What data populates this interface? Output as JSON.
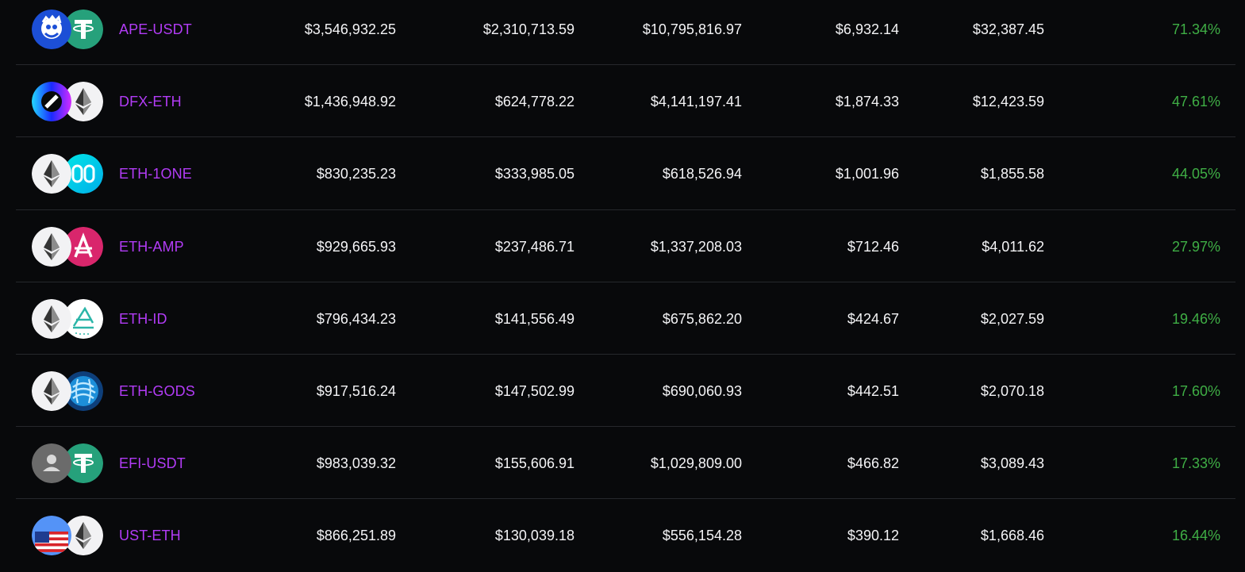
{
  "rows": [
    {
      "pair": "APE-USDT",
      "tvl": "$3,546,932.25",
      "volume_24h": "$2,310,713.59",
      "volume_7d": "$10,795,816.97",
      "fees_24h": "$6,932.14",
      "fees_7d": "$32,387.45",
      "apr": "71.34%",
      "icon1": "ape-icon",
      "icon2": "tether-icon"
    },
    {
      "pair": "DFX-ETH",
      "tvl": "$1,436,948.92",
      "volume_24h": "$624,778.22",
      "volume_7d": "$4,141,197.41",
      "fees_24h": "$1,874.33",
      "fees_7d": "$12,423.59",
      "apr": "47.61%",
      "icon1": "dfx-icon",
      "icon2": "ethereum-icon"
    },
    {
      "pair": "ETH-1ONE",
      "tvl": "$830,235.23",
      "volume_24h": "$333,985.05",
      "volume_7d": "$618,526.94",
      "fees_24h": "$1,001.96",
      "fees_7d": "$1,855.58",
      "apr": "44.05%",
      "icon1": "ethereum-icon",
      "icon2": "harmony-icon"
    },
    {
      "pair": "ETH-AMP",
      "tvl": "$929,665.93",
      "volume_24h": "$237,486.71",
      "volume_7d": "$1,337,208.03",
      "fees_24h": "$712.46",
      "fees_7d": "$4,011.62",
      "apr": "27.97%",
      "icon1": "ethereum-icon",
      "icon2": "amp-icon"
    },
    {
      "pair": "ETH-ID",
      "tvl": "$796,434.23",
      "volume_24h": "$141,556.49",
      "volume_7d": "$675,862.20",
      "fees_24h": "$424.67",
      "fees_7d": "$2,027.59",
      "apr": "19.46%",
      "icon1": "ethereum-icon",
      "icon2": "everest-icon"
    },
    {
      "pair": "ETH-GODS",
      "tvl": "$917,516.24",
      "volume_24h": "$147,502.99",
      "volume_7d": "$690,060.93",
      "fees_24h": "$442.51",
      "fees_7d": "$2,070.18",
      "apr": "17.60%",
      "icon1": "ethereum-icon",
      "icon2": "gods-icon"
    },
    {
      "pair": "EFI-USDT",
      "tvl": "$983,039.32",
      "volume_24h": "$155,606.91",
      "volume_7d": "$1,029,809.00",
      "fees_24h": "$466.82",
      "fees_7d": "$3,089.43",
      "apr": "17.33%",
      "icon1": "placeholder-user-icon",
      "icon2": "tether-icon"
    },
    {
      "pair": "UST-ETH",
      "tvl": "$866,251.89",
      "volume_24h": "$130,039.18",
      "volume_7d": "$556,154.28",
      "fees_24h": "$390.12",
      "fees_7d": "$1,668.46",
      "apr": "16.44%",
      "icon1": "ust-flag-icon",
      "icon2": "ethereum-icon"
    }
  ],
  "colors": {
    "background": "#08090b",
    "pair_text": "#b23cf6",
    "value_text": "#f4f4f6",
    "apr_text": "#3fae45",
    "divider": "#26282c"
  }
}
